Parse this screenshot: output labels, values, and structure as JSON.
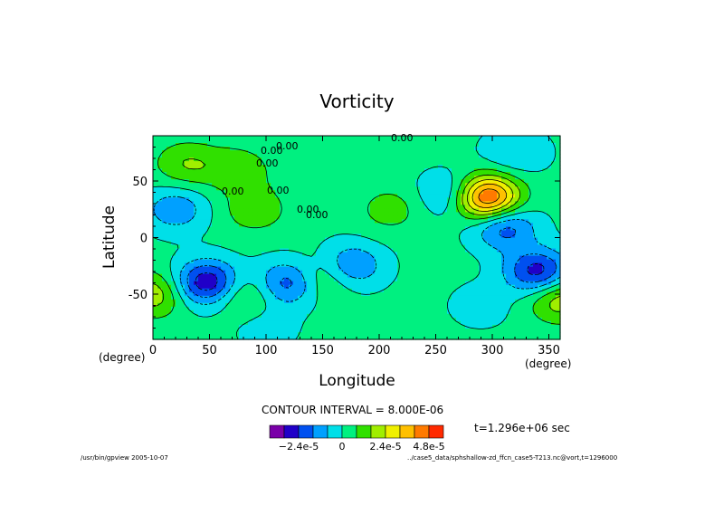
{
  "chart_data": {
    "type": "heatmap",
    "title": "Vorticity",
    "xlabel": "Longitude",
    "ylabel": "Latitude",
    "x_unit": "(degree)",
    "y_unit": "(degree)",
    "xlim": [
      0,
      360
    ],
    "ylim": [
      -90,
      90
    ],
    "x_ticks": [
      0,
      50,
      100,
      150,
      200,
      250,
      300,
      350
    ],
    "y_ticks": [
      50,
      0,
      -50
    ],
    "contour_interval": "CONTOUR INTERVAL = 8.000E-06",
    "contour_labels": [
      "0.00",
      "0.00",
      "0.00",
      "0.00",
      "0.00",
      "0.00",
      "0.00",
      "0.00"
    ],
    "colorbar": {
      "colors": [
        "#7a00a8",
        "#2000c8",
        "#0050f0",
        "#00a0ff",
        "#00dfe8",
        "#00f080",
        "#30e000",
        "#a0ee00",
        "#f0f000",
        "#ffc000",
        "#ff7a00",
        "#ff2a00"
      ],
      "labels": [
        "−2.4e-5",
        "0",
        "2.4e-5",
        "4.8e-5"
      ]
    },
    "field_features": [
      {
        "lon": 295,
        "lat": 35,
        "value": 5.2e-05
      },
      {
        "lon": 48,
        "lat": -40,
        "value": -3.4e-05
      },
      {
        "lon": 120,
        "lat": -40,
        "value": -2.4e-05
      },
      {
        "lon": 175,
        "lat": -25,
        "value": -2e-05
      },
      {
        "lon": 310,
        "lat": 10,
        "value": -2.4e-05
      },
      {
        "lon": 340,
        "lat": -30,
        "value": -3e-05
      },
      {
        "lon": 20,
        "lat": 25,
        "value": -1.6e-05
      },
      {
        "lon": 265,
        "lat": 38,
        "value": -1.6e-05
      },
      {
        "lon": 0,
        "lat": -50,
        "value": 2e-05
      },
      {
        "lon": 360,
        "lat": -55,
        "value": 2e-05
      },
      {
        "lon": 75,
        "lat": 60,
        "value": 1.2e-05
      },
      {
        "lon": 30,
        "lat": 65,
        "value": 1.4e-05
      },
      {
        "lon": 90,
        "lat": 25,
        "value": 1.2e-05
      },
      {
        "lon": 210,
        "lat": 25,
        "value": 1e-05
      },
      {
        "lon": 150,
        "lat": -35,
        "value": 1.4e-05
      },
      {
        "lon": 80,
        "lat": -50,
        "value": 1.2e-05
      },
      {
        "lon": 320,
        "lat": 75,
        "value": -1e-05
      },
      {
        "lon": 290,
        "lat": -60,
        "value": -6e-06
      },
      {
        "lon": 100,
        "lat": -80,
        "value": -6e-06
      }
    ]
  },
  "footer": {
    "left": "/usr/bin/gpview  2005-10-07",
    "right": "../case5_data/sphshallow-zd_ffcn_case5-T213.nc@vort,t=1296000"
  },
  "time_label": "t=1.296e+06 sec"
}
